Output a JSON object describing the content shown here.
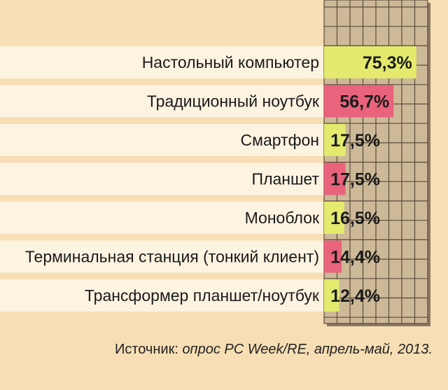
{
  "chart_data": {
    "type": "bar",
    "orientation": "horizontal",
    "categories": [
      "Настольный компьютер",
      "Традиционный ноутбук",
      "Смартфон",
      "Планшет",
      "Моноблок",
      "Терминальная станция (тонкий клиент)",
      "Трансформер планшет/ноутбук"
    ],
    "values": [
      75.3,
      56.7,
      17.5,
      17.5,
      16.5,
      14.4,
      12.4
    ],
    "value_labels": [
      "75,3%",
      "56,7%",
      "17,5%",
      "17,5%",
      "16,5%",
      "14,4%",
      "12,4%"
    ],
    "bar_colors": [
      "#e3ea6e",
      "#e8637b",
      "#e3ea6e",
      "#e8637b",
      "#e3ea6e",
      "#e8637b",
      "#e3ea6e"
    ],
    "xlim": [
      0,
      100
    ],
    "grid": true,
    "title": "",
    "xlabel": "",
    "ylabel": ""
  },
  "source": {
    "label": "Источник:",
    "text": "опрос PC Week/RE, апрель-май, 2013."
  },
  "colors": {
    "background": "#f7deb4",
    "row_band": "#fdf3e1",
    "grid_panel": "#cdb998",
    "grid_line": "#5a4c3c",
    "shadow": "#8a7862"
  }
}
